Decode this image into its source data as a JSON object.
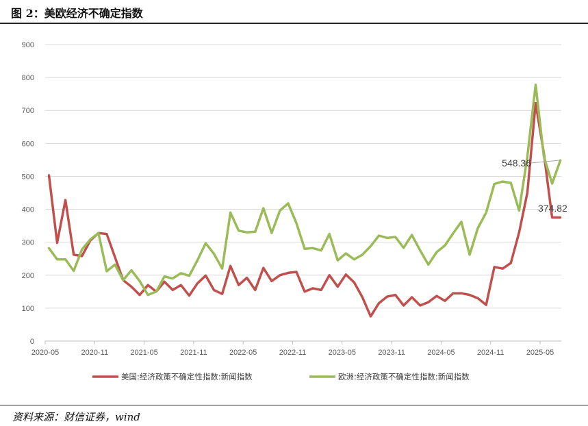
{
  "header": {
    "title": "图 2：美欧经济不确定指数"
  },
  "footer": {
    "source": "资料来源：财信证券，wind"
  },
  "colors": {
    "us": "#c0504d",
    "eu": "#9bbb59",
    "grid": "#d9d9d9",
    "axis": "#bfbfbf"
  },
  "chart_data": {
    "type": "line",
    "ylim": [
      0,
      900
    ],
    "yticks": [
      0,
      100,
      200,
      300,
      400,
      500,
      600,
      700,
      800,
      900
    ],
    "xtick_labels": [
      "2020-05",
      "2020-11",
      "2021-05",
      "2021-11",
      "2022-05",
      "2022-11",
      "2023-05",
      "2023-11",
      "2024-05",
      "2024-11",
      "2025-05"
    ],
    "x": [
      "2020-05",
      "2020-06",
      "2020-07",
      "2020-08",
      "2020-09",
      "2020-10",
      "2020-11",
      "2020-12",
      "2021-01",
      "2021-02",
      "2021-03",
      "2021-04",
      "2021-05",
      "2021-06",
      "2021-07",
      "2021-08",
      "2021-09",
      "2021-10",
      "2021-11",
      "2021-12",
      "2022-01",
      "2022-02",
      "2022-03",
      "2022-04",
      "2022-05",
      "2022-06",
      "2022-07",
      "2022-08",
      "2022-09",
      "2022-10",
      "2022-11",
      "2022-12",
      "2023-01",
      "2023-02",
      "2023-03",
      "2023-04",
      "2023-05",
      "2023-06",
      "2023-07",
      "2023-08",
      "2023-09",
      "2023-10",
      "2023-11",
      "2023-12",
      "2024-01",
      "2024-02",
      "2024-03",
      "2024-04",
      "2024-05",
      "2024-06",
      "2024-07",
      "2024-08",
      "2024-09",
      "2024-10",
      "2024-11",
      "2024-12",
      "2025-01",
      "2025-02",
      "2025-03",
      "2025-04",
      "2025-05",
      "2025-06",
      "2025-07"
    ],
    "series": [
      {
        "name": "美国:经济政策不确定性指数:新闻指数",
        "color": "#c0504d",
        "values": [
          503,
          298,
          428,
          262,
          258,
          305,
          328,
          325,
          255,
          185,
          165,
          140,
          170,
          150,
          180,
          155,
          170,
          138,
          175,
          199,
          155,
          143,
          228,
          170,
          192,
          155,
          222,
          182,
          200,
          207,
          210,
          150,
          160,
          155,
          200,
          165,
          202,
          178,
          133,
          75,
          115,
          135,
          140,
          108,
          133,
          108,
          118,
          137,
          122,
          145,
          145,
          140,
          130,
          110,
          225,
          220,
          237,
          330,
          450,
          722,
          570,
          375,
          375
        ]
      },
      {
        "name": "欧洲:经济政策不确定性指数:新闻指数",
        "color": "#9bbb59",
        "values": [
          282,
          248,
          248,
          213,
          278,
          308,
          328,
          212,
          232,
          185,
          215,
          182,
          140,
          150,
          196,
          190,
          206,
          198,
          245,
          297,
          265,
          220,
          390,
          335,
          330,
          332,
          403,
          328,
          396,
          418,
          358,
          280,
          282,
          275,
          325,
          245,
          266,
          248,
          262,
          288,
          320,
          313,
          316,
          283,
          322,
          275,
          232,
          270,
          290,
          327,
          362,
          262,
          343,
          390,
          477,
          484,
          480,
          396,
          560,
          778,
          560,
          478,
          548.36
        ]
      }
    ],
    "annotations": [
      {
        "label": "548.36",
        "series": 1,
        "x": "2025-07"
      },
      {
        "label": "374.82",
        "series": 0,
        "x": "2025-07"
      }
    ],
    "grid": true,
    "legend": "bottom"
  }
}
